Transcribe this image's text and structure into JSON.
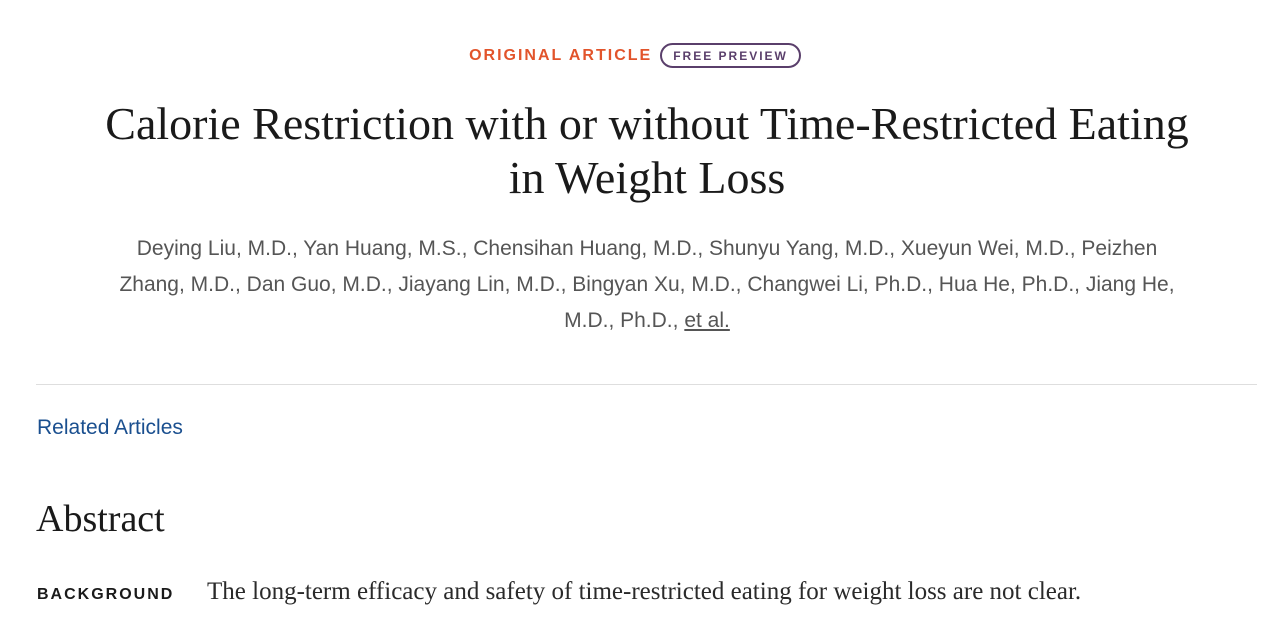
{
  "article": {
    "type": "ORIGINAL ARTICLE",
    "badge": "FREE PREVIEW",
    "title_line1": "Calorie Restriction with or without Time-Restricted Eating",
    "title_line2": "in Weight Loss",
    "authors_line1": "Deying Liu, M.D., Yan Huang, M.S., Chensihan Huang, M.D., Shunyu Yang, M.D., Xueyun Wei, M.D., Peizhen",
    "authors_line2": "Zhang, M.D., Dan Guo, M.D., Jiayang Lin, M.D., Bingyan Xu, M.D., Changwei Li, Ph.D., Hua He, Ph.D., Jiang He,",
    "authors_line3": "M.D., Ph.D.,",
    "et_al": "et al."
  },
  "links": {
    "related_articles": "Related Articles"
  },
  "abstract": {
    "heading": "Abstract",
    "sections": [
      {
        "label": "BACKGROUND",
        "text": "The long-term efficacy and safety of time-restricted eating for weight loss are not clear."
      }
    ]
  },
  "colors": {
    "article_type": "#e2542b",
    "badge": "#5a3f6b",
    "link": "#1a4f8f"
  }
}
